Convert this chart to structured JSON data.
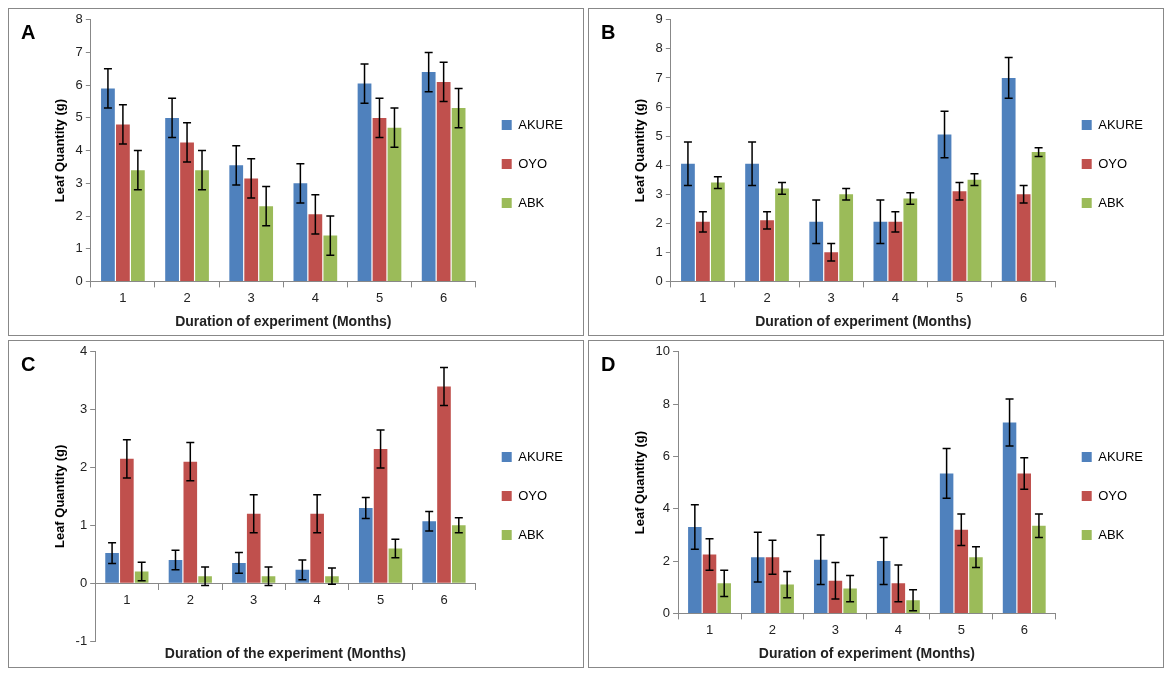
{
  "chart_data": [
    {
      "type": "bar",
      "title": "A",
      "xlabel": "Duration of experiment (Months)",
      "ylabel": "Leaf Quantity (g)",
      "categories": [
        "1",
        "2",
        "3",
        "4",
        "5",
        "6"
      ],
      "ylim": [
        0,
        8
      ],
      "yticks": [
        0,
        1,
        2,
        3,
        4,
        5,
        6,
        7,
        8
      ],
      "grid": false,
      "legend": "right",
      "series": [
        {
          "name": "AKURE",
          "color": "#4f81bd",
          "values": [
            5.9,
            5.0,
            3.55,
            3.0,
            6.05,
            6.4
          ],
          "errors": [
            0.6,
            0.6,
            0.6,
            0.6,
            0.6,
            0.6
          ]
        },
        {
          "name": "OYO",
          "color": "#c0504d",
          "values": [
            4.8,
            4.25,
            3.15,
            2.05,
            5.0,
            6.1
          ],
          "errors": [
            0.6,
            0.6,
            0.6,
            0.6,
            0.6,
            0.6
          ]
        },
        {
          "name": "ABK",
          "color": "#9bbb59",
          "values": [
            3.4,
            3.4,
            2.3,
            1.4,
            4.7,
            5.3
          ],
          "errors": [
            0.6,
            0.6,
            0.6,
            0.6,
            0.6,
            0.6
          ]
        }
      ]
    },
    {
      "type": "bar",
      "title": "B",
      "xlabel": "Duration of experiment (Months)",
      "ylabel": "Leaf Quantity (g)",
      "categories": [
        "1",
        "2",
        "3",
        "4",
        "5",
        "6"
      ],
      "ylim": [
        0,
        9
      ],
      "yticks": [
        0,
        1,
        2,
        3,
        4,
        5,
        6,
        7,
        8,
        9
      ],
      "grid": false,
      "legend": "right",
      "series": [
        {
          "name": "AKURE",
          "color": "#4f81bd",
          "values": [
            4.05,
            4.05,
            2.05,
            2.05,
            5.05,
            7.0
          ],
          "errors": [
            0.75,
            0.75,
            0.75,
            0.75,
            0.8,
            0.7
          ]
        },
        {
          "name": "OYO",
          "color": "#c0504d",
          "values": [
            2.05,
            2.1,
            1.0,
            2.05,
            3.1,
            3.0
          ],
          "errors": [
            0.35,
            0.3,
            0.3,
            0.35,
            0.3,
            0.3
          ]
        },
        {
          "name": "ABK",
          "color": "#9bbb59",
          "values": [
            3.4,
            3.2,
            3.0,
            2.85,
            3.5,
            4.45
          ],
          "errors": [
            0.2,
            0.2,
            0.2,
            0.2,
            0.2,
            0.15
          ]
        }
      ]
    },
    {
      "type": "bar",
      "title": "C",
      "xlabel": "Duration of the experiment (Months)",
      "ylabel": "Leaf Quantity (g)",
      "categories": [
        "1",
        "2",
        "3",
        "4",
        "5",
        "6"
      ],
      "ylim": [
        -1,
        4
      ],
      "yticks": [
        -1,
        0,
        1,
        2,
        3,
        4
      ],
      "grid": false,
      "legend": "right",
      "series": [
        {
          "name": "AKURE",
          "color": "#4f81bd",
          "values": [
            0.52,
            0.4,
            0.35,
            0.23,
            1.3,
            1.07
          ],
          "errors": [
            0.18,
            0.17,
            0.18,
            0.17,
            0.18,
            0.17
          ]
        },
        {
          "name": "OYO",
          "color": "#c0504d",
          "values": [
            2.15,
            2.1,
            1.2,
            1.2,
            2.32,
            3.4
          ],
          "errors": [
            0.33,
            0.33,
            0.33,
            0.33,
            0.33,
            0.33
          ]
        },
        {
          "name": "ABK",
          "color": "#9bbb59",
          "values": [
            0.2,
            0.12,
            0.12,
            0.12,
            0.6,
            1.0
          ],
          "errors": [
            0.16,
            0.16,
            0.16,
            0.14,
            0.16,
            0.13
          ]
        }
      ]
    },
    {
      "type": "bar",
      "title": "D",
      "xlabel": "Duration of experiment (Months)",
      "ylabel": "Leaf Quantity (g)",
      "categories": [
        "1",
        "2",
        "3",
        "4",
        "5",
        "6"
      ],
      "ylim": [
        0,
        10
      ],
      "yticks": [
        0,
        2,
        4,
        6,
        8,
        10
      ],
      "grid": false,
      "legend": "right",
      "series": [
        {
          "name": "AKURE",
          "color": "#4f81bd",
          "values": [
            3.3,
            2.15,
            2.05,
            2.0,
            5.35,
            7.3
          ],
          "errors": [
            0.85,
            0.95,
            0.95,
            0.9,
            0.95,
            0.9
          ]
        },
        {
          "name": "OYO",
          "color": "#c0504d",
          "values": [
            2.25,
            2.15,
            1.25,
            1.15,
            3.2,
            5.35
          ],
          "errors": [
            0.6,
            0.65,
            0.7,
            0.7,
            0.6,
            0.6
          ]
        },
        {
          "name": "ABK",
          "color": "#9bbb59",
          "values": [
            1.15,
            1.1,
            0.95,
            0.5,
            2.15,
            3.35
          ],
          "errors": [
            0.5,
            0.5,
            0.5,
            0.4,
            0.4,
            0.45
          ]
        }
      ]
    }
  ]
}
